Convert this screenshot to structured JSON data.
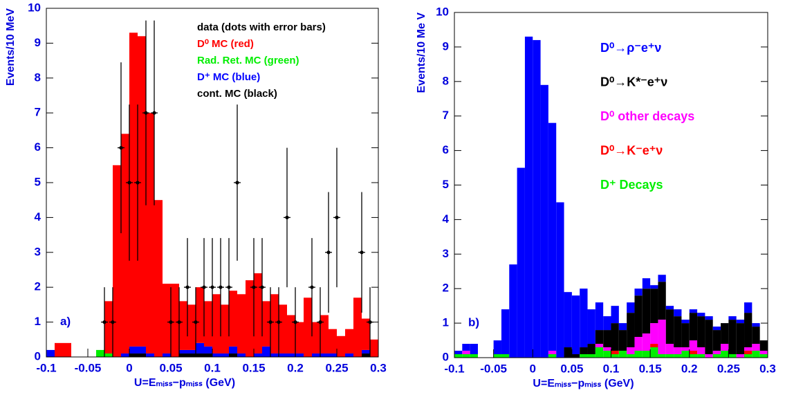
{
  "chart_data": [
    {
      "type": "histogram",
      "stacked": true,
      "xlabel": "U=Eₘᵢₛₛ−pₘᵢₛₛ (GeV)",
      "ylabel": "Events/10 MeV",
      "panel_label": "a)",
      "xlim": [
        -0.1,
        0.3
      ],
      "ylim": [
        0,
        10
      ],
      "xticks": [
        -0.1,
        -0.05,
        0,
        0.05,
        0.1,
        0.15,
        0.2,
        0.25,
        0.3
      ],
      "yticks": [
        0,
        1,
        2,
        3,
        4,
        5,
        6,
        7,
        8,
        9,
        10
      ],
      "bins": [
        -0.1,
        -0.09,
        -0.08,
        -0.07,
        -0.06,
        -0.05,
        -0.04,
        -0.03,
        -0.02,
        -0.01,
        0,
        0.01,
        0.02,
        0.03,
        0.04,
        0.05,
        0.06,
        0.07,
        0.08,
        0.09,
        0.1,
        0.11,
        0.12,
        0.13,
        0.14,
        0.15,
        0.16,
        0.17,
        0.18,
        0.19,
        0.2,
        0.21,
        0.22,
        0.23,
        0.24,
        0.25,
        0.26,
        0.27,
        0.28,
        0.29,
        0.3
      ],
      "points": {
        "name": "data (dots with error bars)",
        "color": "#000000",
        "x": [
          -0.03,
          -0.02,
          -0.01,
          0,
          0.01,
          0.02,
          0.03,
          0.05,
          0.06,
          0.07,
          0.08,
          0.09,
          0.1,
          0.11,
          0.12,
          0.13,
          0.15,
          0.16,
          0.17,
          0.18,
          0.19,
          0.2,
          0.22,
          0.23,
          0.24,
          0.25,
          0.28,
          0.29
        ],
        "values": [
          1,
          1,
          6,
          5,
          5,
          7,
          7,
          1,
          1,
          2,
          1,
          2,
          2,
          2,
          2,
          5,
          2,
          2,
          1,
          1,
          4,
          1,
          2,
          1,
          3,
          4,
          3,
          1
        ],
        "errors": [
          1,
          1,
          2.45,
          2.24,
          2.24,
          2.65,
          2.65,
          1,
          1,
          1.41,
          1,
          1.41,
          1.41,
          1.41,
          1.41,
          2.24,
          1.41,
          1.41,
          1,
          1,
          2,
          1,
          1.41,
          1,
          1.73,
          2,
          1.73,
          1
        ]
      },
      "series": [
        {
          "name": "D⁰ MC (red)",
          "color": "#ff0000",
          "values": [
            0,
            0.4,
            0.4,
            0,
            0,
            0,
            0,
            1.5,
            5.5,
            6.3,
            9.0,
            8.9,
            6.9,
            4.5,
            2.0,
            2.1,
            1.4,
            1.3,
            1.6,
            1.3,
            1.7,
            1.4,
            1.6,
            1.7,
            2.2,
            2.3,
            1.3,
            1.7,
            1.4,
            1.1,
            0.9,
            1.7,
            0.9,
            1.1,
            0.7,
            0.6,
            0.7,
            1.7,
            0.9,
            0.5
          ]
        },
        {
          "name": "Rad. Ret. MC (green)",
          "color": "#00ee00",
          "values": [
            0,
            0,
            0,
            0,
            0,
            0,
            0.2,
            0.1,
            0,
            0,
            0,
            0,
            0,
            0,
            0,
            0,
            0,
            0,
            0,
            0,
            0,
            0,
            0,
            0,
            0,
            0,
            0,
            0,
            0,
            0,
            0,
            0,
            0,
            0,
            0,
            0,
            0,
            0,
            0,
            0
          ]
        },
        {
          "name": "D⁺ MC (blue)",
          "color": "#0000ff",
          "values": [
            0.2,
            0,
            0,
            0,
            0,
            0,
            0,
            0,
            0,
            0.1,
            0.2,
            0.2,
            0.1,
            0,
            0.1,
            0,
            0.1,
            0.1,
            0.3,
            0.2,
            0.1,
            0.1,
            0.2,
            0.1,
            0,
            0.1,
            0.3,
            0.1,
            0.1,
            0.1,
            0.1,
            0,
            0.1,
            0.1,
            0.1,
            0,
            0.1,
            0,
            0.1,
            0
          ]
        },
        {
          "name": "cont. MC (black)",
          "color": "#000000",
          "values": [
            0,
            0,
            0,
            0,
            0,
            0,
            0,
            0,
            0,
            0,
            0.1,
            0.1,
            0,
            0,
            0,
            0,
            0.1,
            0.1,
            0.1,
            0.1,
            0,
            0,
            0.1,
            0,
            0,
            0,
            0,
            0,
            0,
            0,
            0,
            0,
            0,
            0,
            0,
            0,
            0,
            0,
            0.1,
            0
          ]
        }
      ]
    },
    {
      "type": "histogram",
      "stacked": true,
      "xlabel": "U=Eₘᵢₛₛ−pₘᵢₛₛ (GeV)",
      "ylabel": "Events/10 Me V",
      "panel_label": "b)",
      "xlim": [
        -0.1,
        0.3
      ],
      "ylim": [
        0,
        10
      ],
      "xticks": [
        -0.1,
        -0.05,
        0,
        0.05,
        0.1,
        0.15,
        0.2,
        0.25,
        0.3
      ],
      "yticks": [
        0,
        1,
        2,
        3,
        4,
        5,
        6,
        7,
        8,
        9,
        10
      ],
      "bins": [
        -0.1,
        -0.09,
        -0.08,
        -0.07,
        -0.06,
        -0.05,
        -0.04,
        -0.03,
        -0.02,
        -0.01,
        0,
        0.01,
        0.02,
        0.03,
        0.04,
        0.05,
        0.06,
        0.07,
        0.08,
        0.09,
        0.1,
        0.11,
        0.12,
        0.13,
        0.14,
        0.15,
        0.16,
        0.17,
        0.18,
        0.19,
        0.2,
        0.21,
        0.22,
        0.23,
        0.24,
        0.25,
        0.26,
        0.27,
        0.28,
        0.29,
        0.3
      ],
      "series": [
        {
          "name": "D⁰→ρ⁻e⁺ν",
          "color": "#0000ff",
          "values": [
            0.1,
            0.2,
            0.3,
            0,
            0,
            0.4,
            1.3,
            2.7,
            5.5,
            9.3,
            9.2,
            7.9,
            6.6,
            4.5,
            1.6,
            1.7,
            1.7,
            1.0,
            0.8,
            0.4,
            0.5,
            0.2,
            0.3,
            0.2,
            0.3,
            0.1,
            0.2,
            0.1,
            0.2,
            0.1,
            0.1,
            0.1,
            0.1,
            0.1,
            0,
            0.1,
            0.1,
            0.3,
            0.1,
            0
          ]
        },
        {
          "name": "D⁰→K*⁻e⁺ν",
          "color": "#000000",
          "values": [
            0,
            0,
            0,
            0,
            0,
            0,
            0,
            0,
            0,
            0,
            0,
            0,
            0,
            0,
            0.3,
            0.1,
            0.2,
            0.3,
            0.4,
            0.5,
            0.8,
            0.6,
            1.0,
            1.2,
            1.3,
            1.0,
            1.1,
            1.0,
            0.9,
            0.7,
            0.8,
            0.9,
            1.0,
            0.6,
            0.6,
            1.0,
            0.9,
            1.0,
            0.5,
            0.3
          ]
        },
        {
          "name": "D⁰ other decays",
          "color": "#ff00ff",
          "values": [
            0,
            0.1,
            0,
            0,
            0,
            0,
            0,
            0,
            0,
            0,
            0,
            0,
            0.1,
            0,
            0,
            0,
            0,
            0,
            0.1,
            0.1,
            0,
            0,
            0.2,
            0.4,
            0.5,
            0.6,
            1.0,
            0.3,
            0.2,
            0.1,
            0.3,
            0.2,
            0.1,
            0.1,
            0.2,
            0,
            0.1,
            0.1,
            0.2,
            0.1
          ]
        },
        {
          "name": "D⁰→K⁻e⁺ν",
          "color": "#ff0000",
          "values": [
            0,
            0,
            0,
            0,
            0,
            0,
            0,
            0,
            0,
            0,
            0,
            0,
            0,
            0,
            0,
            0,
            0,
            0,
            0,
            0,
            0.1,
            0,
            0,
            0,
            0,
            0.1,
            0,
            0,
            0,
            0,
            0.1,
            0,
            0,
            0,
            0,
            0,
            0,
            0.1,
            0,
            0
          ]
        },
        {
          "name": "D⁺ Decays",
          "color": "#00ee00",
          "values": [
            0.1,
            0.1,
            0.1,
            0,
            0,
            0.1,
            0.1,
            0,
            0,
            0,
            0,
            0,
            0.1,
            0,
            0,
            0,
            0.1,
            0.1,
            0.3,
            0.2,
            0.1,
            0.2,
            0.1,
            0.2,
            0.2,
            0.3,
            0.1,
            0.1,
            0.1,
            0.2,
            0.1,
            0.1,
            0,
            0.1,
            0.2,
            0.1,
            0,
            0.1,
            0.2,
            0.1
          ]
        }
      ]
    }
  ]
}
